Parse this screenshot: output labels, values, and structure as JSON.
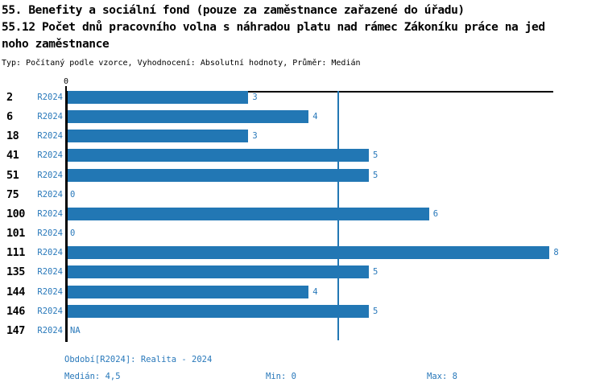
{
  "header": {
    "title_line1": "55. Benefity a sociální fond (pouze za zaměstnance zařazené do úřadu)",
    "title_line2": "55.12 Počet dnů pracovního volna s náhradou platu nad rámec Zákoníku práce na jed",
    "title_line3": "noho zaměstnance",
    "meta": "Typ: Počítaný podle vzorce, Vyhodnocení: Absolutní hodnoty, Průměr: Medián"
  },
  "chart_data": {
    "type": "bar",
    "orientation": "horizontal",
    "title": "55. Benefity a sociální fond (pouze za zaměstnance zařazené do úřadu)",
    "subtitle": "55.12 Počet dnů pracovního volna s náhradou platu nad rámec Zákoníku práce na jednoho zaměstnance",
    "xlim": [
      0,
      8
    ],
    "x_tick_labels": [
      "0"
    ],
    "median_reference_line": 4.5,
    "series_name": "R2024",
    "categories": [
      "2",
      "6",
      "18",
      "41",
      "51",
      "75",
      "100",
      "101",
      "111",
      "135",
      "144",
      "146",
      "147"
    ],
    "values": [
      3,
      4,
      3,
      5,
      5,
      0,
      6,
      0,
      8,
      5,
      4,
      5,
      null
    ],
    "rows": [
      {
        "category": "2",
        "series": "R2024",
        "value": 3,
        "value_label": "3"
      },
      {
        "category": "6",
        "series": "R2024",
        "value": 4,
        "value_label": "4"
      },
      {
        "category": "18",
        "series": "R2024",
        "value": 3,
        "value_label": "3"
      },
      {
        "category": "41",
        "series": "R2024",
        "value": 5,
        "value_label": "5"
      },
      {
        "category": "51",
        "series": "R2024",
        "value": 5,
        "value_label": "5"
      },
      {
        "category": "75",
        "series": "R2024",
        "value": 0,
        "value_label": "0"
      },
      {
        "category": "100",
        "series": "R2024",
        "value": 6,
        "value_label": "6"
      },
      {
        "category": "101",
        "series": "R2024",
        "value": 0,
        "value_label": "0"
      },
      {
        "category": "111",
        "series": "R2024",
        "value": 8,
        "value_label": "8"
      },
      {
        "category": "135",
        "series": "R2024",
        "value": 5,
        "value_label": "5"
      },
      {
        "category": "144",
        "series": "R2024",
        "value": 4,
        "value_label": "4"
      },
      {
        "category": "146",
        "series": "R2024",
        "value": 5,
        "value_label": "5"
      },
      {
        "category": "147",
        "series": "R2024",
        "value": null,
        "value_label": "NA"
      }
    ],
    "colors": {
      "bar": "#2277b4",
      "median_line": "#2277b4",
      "accent_text": "#2878ba",
      "axis": "#000000",
      "category_text": "#000000"
    }
  },
  "footer": {
    "period": "Období[R2024]: Realita - 2024",
    "median": "Medián: 4,5",
    "min": "Min: 0",
    "max": "Max: 8"
  }
}
